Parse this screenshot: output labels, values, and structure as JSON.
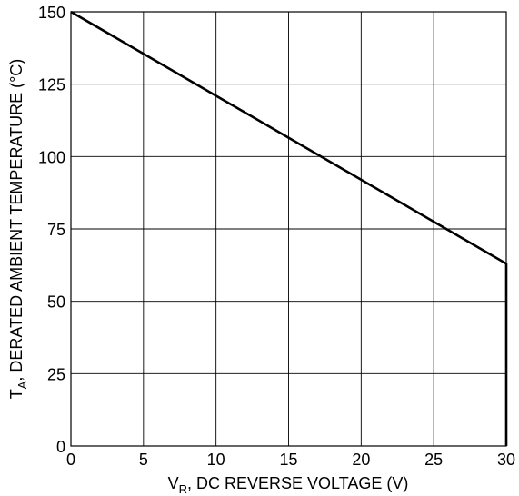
{
  "chart_data": {
    "type": "line",
    "xlabel": {
      "main": "V",
      "sub": "R",
      "rest": ", DC REVERSE VOLTAGE (V)"
    },
    "ylabel": {
      "main": "T",
      "sub": "A",
      "rest": ", DERATED AMBIENT TEMPERATURE (°C)"
    },
    "xlim": [
      0,
      30
    ],
    "ylim": [
      0,
      150
    ],
    "xticks": [
      0,
      5,
      10,
      15,
      20,
      25,
      30
    ],
    "yticks": [
      0,
      25,
      50,
      75,
      100,
      125,
      150
    ],
    "grid": true,
    "series": [
      {
        "color": "#000000",
        "points": [
          [
            0,
            150
          ],
          [
            30,
            63
          ],
          [
            30,
            0
          ]
        ]
      }
    ]
  }
}
